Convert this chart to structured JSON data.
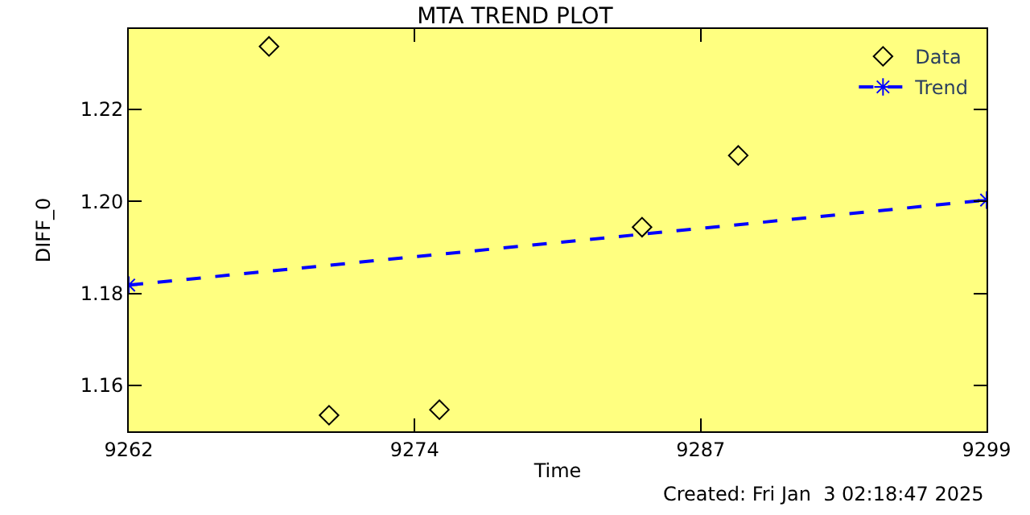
{
  "chart_data": {
    "type": "scatter",
    "title": "MTA TREND PLOT",
    "xlabel": "Time",
    "ylabel": "DIFF_0",
    "annotations": [
      "Created: Fri Jan  3 02:18:47 2025"
    ],
    "xlim": [
      9262,
      9299
    ],
    "xticks": [
      9262,
      {
        "value": 9274.33,
        "label": "9274"
      },
      {
        "value": 9286.67,
        "label": "9287"
      },
      9299
    ],
    "ylim": [
      1.15,
      1.2375
    ],
    "yticks": [
      1.16,
      1.18,
      {
        "value": 1.2,
        "label": "1.20"
      },
      1.22
    ],
    "grid": false,
    "legend": "top right",
    "series": [
      {
        "name": "Data",
        "color": "#000000",
        "marker": "diamond",
        "x": [
          9268.05,
          9270.64,
          9275.4,
          9284.14,
          9288.29
        ],
        "values": [
          1.2337,
          1.1535,
          1.1547,
          1.1944,
          1.21
        ]
      },
      {
        "name": "Trend",
        "type": "line",
        "color": "#0000ff",
        "marker": "cross",
        "line_style": "dashed",
        "x": [
          9262,
          9299
        ],
        "values": [
          1.1818,
          1.2003
        ]
      }
    ]
  }
}
